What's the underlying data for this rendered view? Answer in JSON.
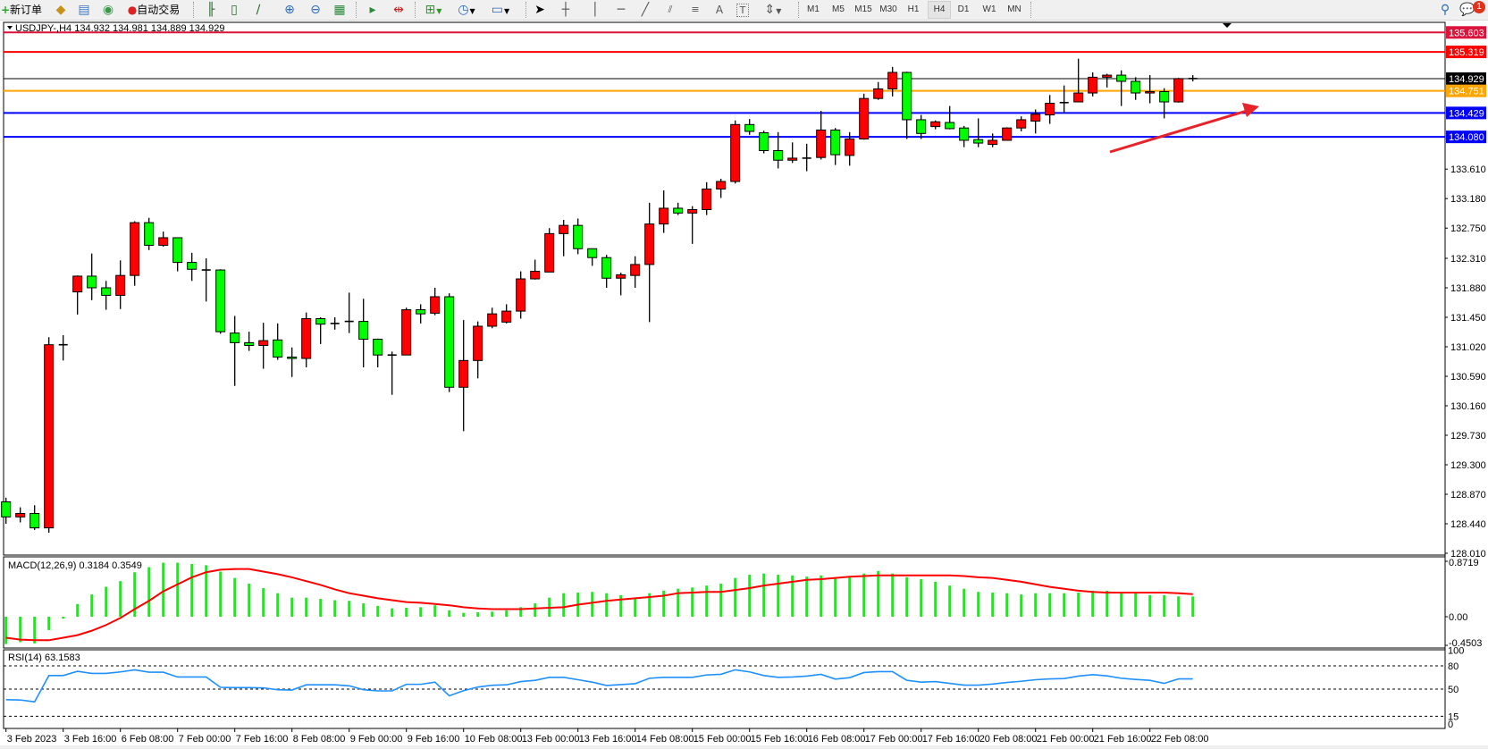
{
  "toolbar": {
    "new_order": "新订单",
    "auto_trading": "自动交易",
    "icons": [
      "market-watch-icon",
      "navigator-icon",
      "signals-icon",
      "auto-trading-icon",
      "bar-chart-icon",
      "candlestick-chart-icon",
      "line-chart-icon",
      "zoom-in-icon",
      "zoom-out-icon",
      "tile-windows-icon",
      "auto-scroll-icon",
      "chart-shift-icon",
      "new-chart-icon",
      "periods-icon",
      "indicators-icon",
      "cursor-icon",
      "crosshair-icon",
      "vertical-line-icon",
      "horizontal-line-icon",
      "trendline-icon",
      "fibonacci-retracement-icon",
      "fibonacci-fan-icon",
      "text-icon",
      "text-label-icon",
      "arrows-icon",
      "search-icon",
      "notifications-icon"
    ],
    "text_tool": "A",
    "label_tool": "T",
    "timeframes": [
      "M1",
      "M5",
      "M15",
      "M30",
      "H1",
      "H4",
      "D1",
      "W1",
      "MN"
    ],
    "active_timeframe": "H4",
    "notification_count": "1"
  },
  "chart": {
    "header": "USDJPY-,H4  134.932 134.981 134.889 134.929",
    "price_ticks": [
      "133.610",
      "133.180",
      "132.750",
      "132.310",
      "131.880",
      "131.450",
      "131.020",
      "130.590",
      "130.160",
      "129.730",
      "129.300",
      "128.870",
      "128.440",
      "128.010"
    ],
    "price_lines": [
      {
        "price": "135.603",
        "color": "#dc143c"
      },
      {
        "price": "135.319",
        "color": "#ff0000"
      },
      {
        "price": "134.929",
        "color": "#000000"
      },
      {
        "price": "134.751",
        "color": "#ffa500"
      },
      {
        "price": "134.429",
        "color": "#0000ff"
      },
      {
        "price": "134.080",
        "color": "#0000ff"
      }
    ],
    "time_labels": [
      "3 Feb 2023",
      "3 Feb 16:00",
      "6 Feb 08:00",
      "7 Feb 00:00",
      "7 Feb 16:00",
      "8 Feb 08:00",
      "9 Feb 00:00",
      "9 Feb 16:00",
      "10 Feb 08:00",
      "13 Feb 00:00",
      "13 Feb 16:00",
      "14 Feb 08:00",
      "15 Feb 00:00",
      "15 Feb 16:00",
      "16 Feb 08:00",
      "17 Feb 00:00",
      "17 Feb 16:00",
      "20 Feb 08:00",
      "21 Feb 00:00",
      "21 Feb 16:00",
      "22 Feb 08:00"
    ],
    "up_color": "#ff0000",
    "down_color": "#00ff00",
    "annotation_arrow_color": "#e8242a"
  },
  "macd": {
    "label": "MACD(12,26,9) 0.3184 0.3549",
    "ticks": [
      "0.8719",
      "0.00",
      "-0.4503"
    ],
    "histogram_color": "#00ff00",
    "signal_color": "#ff0000"
  },
  "rsi": {
    "label": "RSI(14) 63.1583",
    "ticks": [
      "100",
      "80",
      "50",
      "15",
      "0"
    ],
    "levels": [
      80,
      50,
      15
    ],
    "line_color": "#1e90ff"
  },
  "chart_data": {
    "type": "candlestick",
    "symbol": "USDJPY-",
    "timeframe": "H4",
    "ylim": [
      128.01,
      135.65
    ],
    "ohlc": [
      [
        128.76,
        128.82,
        128.44,
        128.54
      ],
      [
        128.54,
        128.68,
        128.46,
        128.59
      ],
      [
        128.59,
        128.71,
        128.35,
        128.38
      ],
      [
        128.38,
        131.16,
        128.31,
        131.05
      ],
      [
        131.05,
        131.19,
        130.82,
        131.05
      ],
      [
        131.82,
        132.06,
        131.49,
        132.05
      ],
      [
        132.05,
        132.38,
        131.7,
        131.88
      ],
      [
        131.88,
        131.98,
        131.56,
        131.77
      ],
      [
        131.77,
        132.28,
        131.57,
        132.06
      ],
      [
        132.06,
        132.85,
        131.91,
        132.83
      ],
      [
        132.83,
        132.9,
        132.43,
        132.5
      ],
      [
        132.5,
        132.7,
        132.48,
        132.61
      ],
      [
        132.61,
        132.61,
        132.12,
        132.25
      ],
      [
        132.25,
        132.39,
        131.98,
        132.15
      ],
      [
        132.14,
        132.31,
        131.68,
        132.14
      ],
      [
        132.14,
        132.15,
        131.21,
        131.24
      ],
      [
        131.22,
        131.47,
        130.45,
        131.08
      ],
      [
        131.08,
        131.24,
        130.96,
        131.04
      ],
      [
        131.04,
        131.37,
        130.7,
        131.11
      ],
      [
        131.12,
        131.36,
        130.83,
        130.87
      ],
      [
        130.87,
        131.01,
        130.58,
        130.85
      ],
      [
        130.85,
        131.52,
        130.72,
        131.43
      ],
      [
        131.43,
        131.45,
        131.06,
        131.35
      ],
      [
        131.36,
        131.45,
        131.27,
        131.36
      ],
      [
        131.39,
        131.81,
        131.22,
        131.39
      ],
      [
        131.39,
        131.72,
        130.72,
        131.13
      ],
      [
        131.13,
        131.14,
        130.72,
        130.9
      ],
      [
        130.9,
        130.95,
        130.32,
        130.9
      ],
      [
        130.9,
        131.59,
        130.9,
        131.56
      ],
      [
        131.56,
        131.64,
        131.36,
        131.5
      ],
      [
        131.51,
        131.88,
        131.48,
        131.75
      ],
      [
        131.75,
        131.8,
        130.36,
        130.43
      ],
      [
        130.43,
        131.41,
        129.79,
        130.82
      ],
      [
        130.82,
        131.39,
        130.56,
        131.32
      ],
      [
        131.32,
        131.59,
        131.29,
        131.5
      ],
      [
        131.38,
        131.64,
        131.36,
        131.54
      ],
      [
        131.54,
        132.12,
        131.43,
        132.01
      ],
      [
        132.01,
        132.29,
        132.0,
        132.12
      ],
      [
        132.11,
        132.75,
        132.11,
        132.67
      ],
      [
        132.67,
        132.87,
        132.34,
        132.79
      ],
      [
        132.79,
        132.89,
        132.37,
        132.45
      ],
      [
        132.45,
        132.45,
        132.2,
        132.32
      ],
      [
        132.32,
        132.36,
        131.88,
        132.02
      ],
      [
        132.02,
        132.1,
        131.77,
        132.07
      ],
      [
        132.06,
        132.34,
        131.88,
        132.22
      ],
      [
        132.22,
        133.12,
        131.38,
        132.81
      ],
      [
        132.81,
        133.3,
        132.68,
        133.04
      ],
      [
        133.04,
        133.12,
        132.94,
        132.97
      ],
      [
        132.97,
        133.07,
        132.52,
        133.02
      ],
      [
        133.02,
        133.42,
        132.94,
        133.32
      ],
      [
        133.32,
        133.47,
        133.19,
        133.43
      ],
      [
        133.43,
        134.32,
        133.4,
        134.26
      ],
      [
        134.26,
        134.34,
        134.11,
        134.16
      ],
      [
        134.14,
        134.17,
        133.84,
        133.88
      ],
      [
        133.88,
        134.15,
        133.62,
        133.74
      ],
      [
        133.74,
        134.0,
        133.7,
        133.77
      ],
      [
        133.77,
        133.98,
        133.58,
        133.77
      ],
      [
        133.78,
        134.46,
        133.75,
        134.18
      ],
      [
        134.18,
        134.21,
        133.67,
        133.82
      ],
      [
        133.81,
        134.15,
        133.66,
        134.05
      ],
      [
        134.05,
        134.71,
        134.04,
        134.64
      ],
      [
        134.64,
        134.88,
        134.62,
        134.78
      ],
      [
        134.78,
        135.1,
        134.67,
        135.02
      ],
      [
        135.02,
        135.03,
        134.05,
        134.33
      ],
      [
        134.33,
        134.4,
        134.05,
        134.13
      ],
      [
        134.23,
        134.32,
        134.19,
        134.3
      ],
      [
        134.29,
        134.53,
        134.19,
        134.2
      ],
      [
        134.21,
        134.24,
        133.93,
        134.03
      ],
      [
        134.04,
        134.35,
        133.93,
        133.99
      ],
      [
        133.97,
        134.13,
        133.93,
        134.03
      ],
      [
        134.03,
        134.22,
        134.03,
        134.21
      ],
      [
        134.21,
        134.38,
        134.16,
        134.33
      ],
      [
        134.31,
        134.48,
        134.13,
        134.41
      ],
      [
        134.4,
        134.69,
        134.27,
        134.57
      ],
      [
        134.58,
        134.83,
        134.43,
        134.58
      ],
      [
        134.59,
        135.22,
        134.59,
        134.72
      ],
      [
        134.72,
        135.02,
        134.67,
        134.95
      ],
      [
        134.95,
        135.0,
        134.8,
        134.98
      ],
      [
        134.98,
        135.05,
        134.53,
        134.89
      ],
      [
        134.89,
        134.95,
        134.62,
        134.72
      ],
      [
        134.72,
        134.98,
        134.57,
        134.74
      ],
      [
        134.74,
        134.79,
        134.35,
        134.59
      ],
      [
        134.59,
        134.94,
        134.58,
        134.93
      ],
      [
        134.932,
        134.981,
        134.889,
        134.929
      ]
    ],
    "macd_histogram": [
      -0.43,
      -0.4,
      -0.42,
      -0.21,
      -0.03,
      0.2,
      0.35,
      0.47,
      0.56,
      0.7,
      0.78,
      0.85,
      0.85,
      0.83,
      0.81,
      0.71,
      0.61,
      0.52,
      0.45,
      0.37,
      0.3,
      0.3,
      0.28,
      0.26,
      0.25,
      0.21,
      0.17,
      0.13,
      0.14,
      0.15,
      0.18,
      0.1,
      0.06,
      0.07,
      0.08,
      0.1,
      0.15,
      0.21,
      0.3,
      0.37,
      0.38,
      0.39,
      0.37,
      0.34,
      0.3,
      0.37,
      0.41,
      0.44,
      0.46,
      0.49,
      0.52,
      0.61,
      0.66,
      0.68,
      0.66,
      0.65,
      0.63,
      0.65,
      0.61,
      0.63,
      0.68,
      0.72,
      0.68,
      0.62,
      0.59,
      0.55,
      0.49,
      0.44,
      0.39,
      0.38,
      0.37,
      0.35,
      0.37,
      0.37,
      0.37,
      0.38,
      0.41,
      0.41,
      0.38,
      0.37,
      0.34,
      0.34,
      0.32,
      0.3184
    ],
    "macd_signal": [
      -0.33,
      -0.36,
      -0.37,
      -0.37,
      -0.33,
      -0.29,
      -0.22,
      -0.13,
      -0.02,
      0.12,
      0.25,
      0.4,
      0.51,
      0.62,
      0.7,
      0.74,
      0.75,
      0.75,
      0.71,
      0.67,
      0.62,
      0.56,
      0.5,
      0.43,
      0.37,
      0.33,
      0.29,
      0.26,
      0.23,
      0.22,
      0.2,
      0.18,
      0.15,
      0.13,
      0.12,
      0.12,
      0.12,
      0.13,
      0.14,
      0.15,
      0.19,
      0.22,
      0.25,
      0.27,
      0.29,
      0.31,
      0.33,
      0.37,
      0.38,
      0.39,
      0.39,
      0.42,
      0.45,
      0.49,
      0.52,
      0.55,
      0.58,
      0.59,
      0.61,
      0.63,
      0.64,
      0.65,
      0.65,
      0.65,
      0.65,
      0.65,
      0.65,
      0.64,
      0.62,
      0.61,
      0.58,
      0.55,
      0.51,
      0.47,
      0.44,
      0.41,
      0.39,
      0.38,
      0.38,
      0.38,
      0.38,
      0.38,
      0.37,
      0.3549
    ],
    "macd_range": [
      -0.4503,
      0.8719
    ],
    "rsi": [
      36.4,
      36,
      33.6,
      67.5,
      67.5,
      73,
      70.3,
      70.3,
      72.2,
      74.9,
      71.8,
      71.8,
      65.6,
      65.6,
      65.6,
      52.3,
      51.9,
      51.9,
      51.6,
      49.2,
      48.8,
      55.5,
      55.5,
      55.5,
      54.3,
      49.2,
      47.7,
      47.7,
      56.2,
      56.2,
      59,
      41.4,
      48,
      52.7,
      55,
      55.5,
      59.7,
      61.3,
      65.2,
      65.2,
      62.1,
      59,
      54.7,
      55.8,
      57,
      64,
      65.2,
      65.2,
      65.2,
      68.3,
      69.1,
      74.9,
      72.2,
      67.5,
      65.2,
      65.6,
      66.8,
      69.1,
      62.9,
      64.8,
      71.4,
      72.6,
      72.6,
      61.3,
      59,
      59.7,
      57.4,
      55.1,
      55.1,
      56.6,
      58.6,
      60.1,
      62.1,
      63.2,
      63.6,
      66.8,
      68.7,
      67.1,
      64,
      62.5,
      61.3,
      57.4,
      63.2,
      63.1583
    ]
  }
}
